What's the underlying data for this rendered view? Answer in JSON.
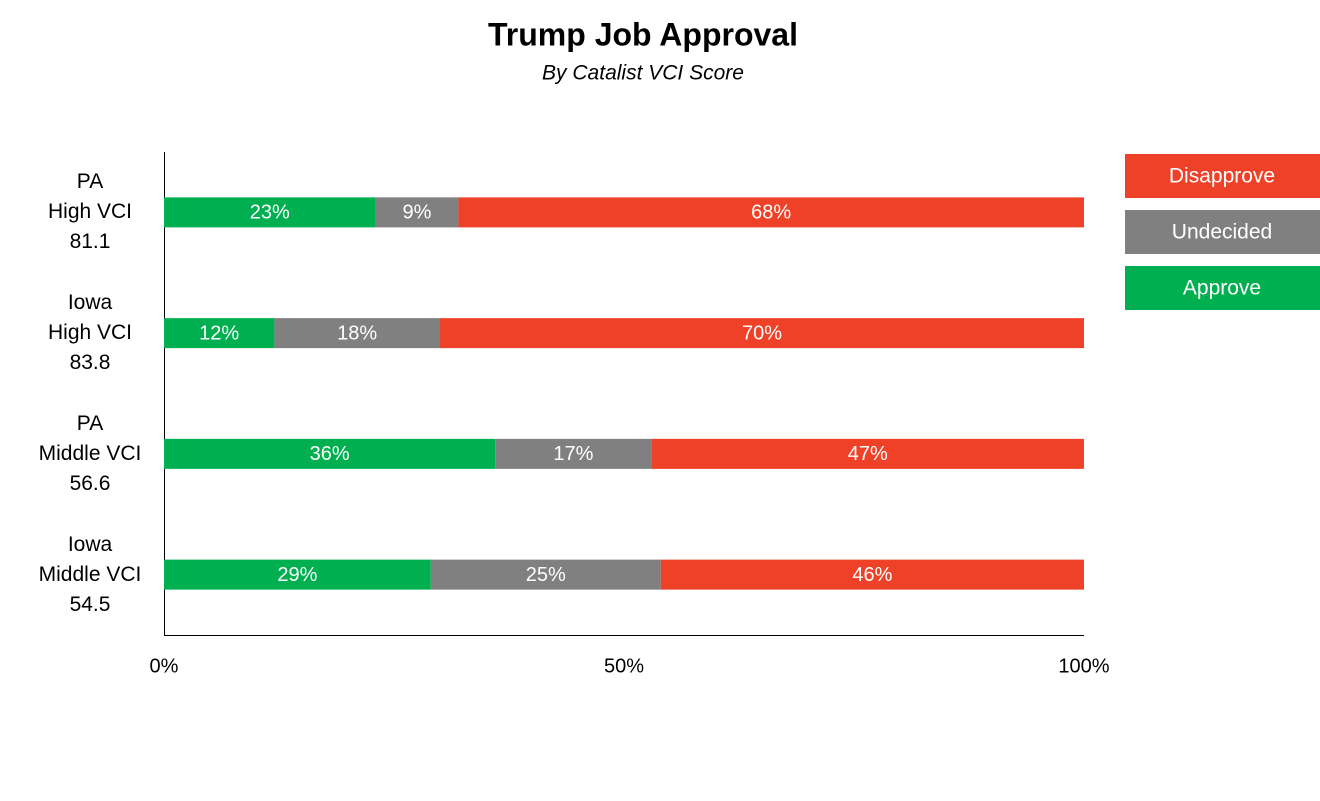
{
  "chart_data": {
    "type": "stacked-bar-horizontal",
    "title": "Trump Job Approval",
    "subtitle": "By Catalist VCI Score",
    "categories": [
      "PA\nHigh VCI\n81.1",
      "Iowa\nHigh VCI\n83.8",
      "PA\nMiddle VCI\n56.6",
      "Iowa\nMiddle VCI\n54.5"
    ],
    "series": [
      {
        "name": "Approve",
        "color": "#00b050",
        "values": [
          23,
          12,
          36,
          29
        ],
        "value_labels": [
          "23%",
          "12%",
          "36%",
          "29%"
        ]
      },
      {
        "name": "Undecided",
        "color": "#808080",
        "values": [
          9,
          18,
          17,
          25
        ],
        "value_labels": [
          "9%",
          "18%",
          "17%",
          "25%"
        ]
      },
      {
        "name": "Disapprove",
        "color": "#ee4128",
        "values": [
          68,
          70,
          47,
          46
        ],
        "value_labels": [
          "68%",
          "70%",
          "47%",
          "46%"
        ]
      }
    ],
    "xlim": [
      0,
      100
    ],
    "xticks": [
      {
        "value": 0,
        "label": "0%"
      },
      {
        "value": 50,
        "label": "50%"
      },
      {
        "value": 100,
        "label": "100%"
      }
    ],
    "legend": "right"
  }
}
